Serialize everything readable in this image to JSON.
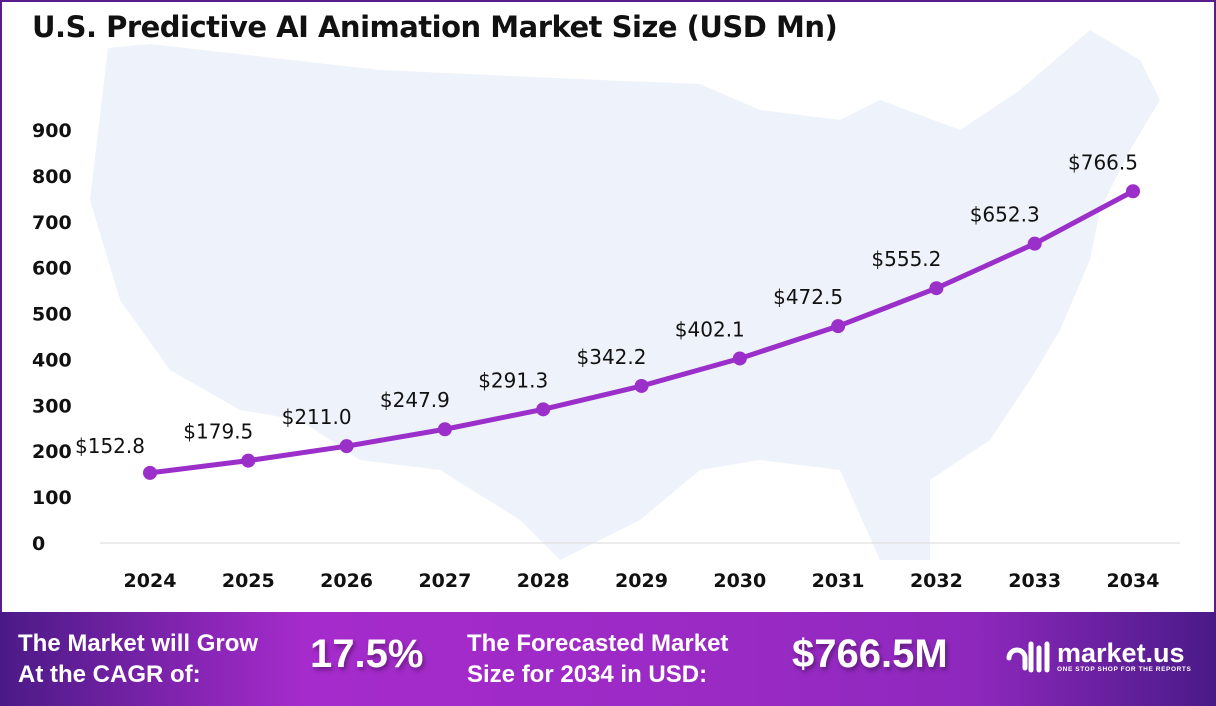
{
  "chart_data": {
    "type": "line",
    "title": "U.S. Predictive AI Animation Market Size (USD Mn)",
    "categories": [
      "2024",
      "2025",
      "2026",
      "2027",
      "2028",
      "2029",
      "2030",
      "2031",
      "2032",
      "2033",
      "2034"
    ],
    "values": [
      152.8,
      179.5,
      211.0,
      247.9,
      291.3,
      342.2,
      402.1,
      472.5,
      555.2,
      652.3,
      766.5
    ],
    "data_labels": [
      "$152.8",
      "$179.5",
      "$211.0",
      "$247.9",
      "$291.3",
      "$342.2",
      "$402.1",
      "$472.5",
      "$555.2",
      "$652.3",
      "$766.5"
    ],
    "yticks": [
      "0",
      "100",
      "200",
      "300",
      "400",
      "500",
      "600",
      "700",
      "800",
      "900"
    ],
    "ylim": [
      0,
      900
    ],
    "xlabel": "",
    "ylabel": "",
    "grid": false,
    "line_color": "#9b2fc9"
  },
  "footer": {
    "cagr_label_1": "The Market will Grow",
    "cagr_label_2": "At the CAGR of:",
    "cagr_value": "17.5%",
    "forecast_label_1": "The Forecasted Market",
    "forecast_label_2": "Size for 2034 in USD:",
    "forecast_value": "$766.5M",
    "brand": "market.us",
    "tagline": "ONE STOP SHOP FOR THE REPORTS"
  }
}
